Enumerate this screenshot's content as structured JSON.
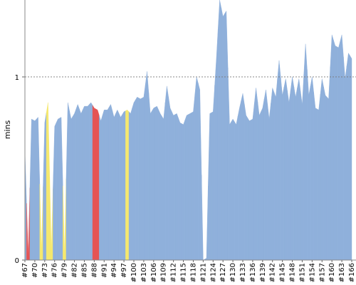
{
  "chart_data": {
    "type": "area",
    "y_label": "mins",
    "categories": [
      "#67",
      null,
      null,
      "#70",
      null,
      null,
      "#73",
      null,
      null,
      "#76",
      null,
      null,
      "#79",
      null,
      null,
      "#82",
      null,
      null,
      "#85",
      null,
      null,
      "#88",
      null,
      null,
      "#91",
      null,
      null,
      "#94",
      null,
      null,
      "#97",
      null,
      null,
      "#100",
      null,
      null,
      "#103",
      null,
      null,
      "#106",
      null,
      null,
      "#109",
      null,
      null,
      "#112",
      null,
      null,
      "#115",
      null,
      null,
      "#118",
      null,
      null,
      "#121",
      null,
      null,
      "#124",
      null,
      null,
      "#127",
      null,
      null,
      "#130",
      null,
      null,
      "#133",
      null,
      null,
      "#136",
      null,
      null,
      "#139",
      null,
      null,
      "#142",
      null,
      null,
      "#145",
      null,
      null,
      "#148",
      null,
      null,
      "#151",
      null,
      null,
      "#154",
      null,
      null,
      "#157",
      null,
      null,
      "#160",
      null,
      null,
      "#163",
      null,
      null,
      "#166"
    ],
    "values": [
      0.6,
      0.02,
      0.77,
      0.76,
      0.78,
      0.05,
      0.75,
      0.86,
      0.05,
      0.73,
      0.77,
      0.78,
      0.03,
      0.86,
      0.77,
      0.8,
      0.85,
      0.8,
      0.84,
      0.84,
      0.86,
      0.83,
      0.82,
      0.76,
      0.82,
      0.82,
      0.85,
      0.78,
      0.82,
      0.78,
      0.81,
      0.82,
      0.8,
      0.86,
      0.89,
      0.88,
      0.89,
      1.03,
      0.8,
      0.83,
      0.84,
      0.8,
      0.77,
      0.95,
      0.83,
      0.79,
      0.8,
      0.75,
      0.74,
      0.79,
      0.8,
      0.81,
      1.0,
      0.93,
      0.0,
      0.01,
      0.8,
      0.81,
      1.1,
      1.42,
      1.33,
      1.36,
      0.74,
      0.77,
      0.74,
      0.83,
      0.91,
      0.79,
      0.76,
      0.77,
      0.94,
      0.79,
      0.83,
      0.93,
      0.77,
      0.94,
      0.89,
      1.09,
      0.9,
      0.99,
      0.86,
      1.0,
      0.89,
      0.99,
      0.85,
      1.18,
      0.9,
      1.0,
      0.83,
      0.82,
      0.99,
      0.9,
      0.88,
      1.23,
      1.17,
      1.16,
      1.23,
      0.99,
      1.13,
      1.1
    ],
    "colors": [
      "#8fb0db",
      "#e55454",
      "#8fb0db",
      "#8fb0db",
      "#8fb0db",
      "#f5e86e",
      "#8fb0db",
      "#f5e86e",
      "#f5e86e",
      "#8fb0db",
      "#8fb0db",
      "#8fb0db",
      "#f5e86e",
      "#8fb0db",
      "#8fb0db",
      "#8fb0db",
      "#8fb0db",
      "#8fb0db",
      "#8fb0db",
      "#8fb0db",
      "#8fb0db",
      "#e55454",
      "#e55454",
      "#8fb0db",
      "#8fb0db",
      "#8fb0db",
      "#8fb0db",
      "#8fb0db",
      "#8fb0db",
      "#8fb0db",
      "#8fb0db",
      "#f5e86e",
      "#8fb0db",
      "#8fb0db",
      "#8fb0db",
      "#8fb0db",
      "#8fb0db",
      "#8fb0db",
      "#8fb0db",
      "#8fb0db",
      "#8fb0db",
      "#8fb0db",
      "#8fb0db",
      "#8fb0db",
      "#8fb0db",
      "#8fb0db",
      "#8fb0db",
      "#8fb0db",
      "#8fb0db",
      "#8fb0db",
      "#8fb0db",
      "#8fb0db",
      "#8fb0db",
      "#8fb0db",
      "#8fb0db",
      "#8fb0db",
      "#8fb0db",
      "#8fb0db",
      "#8fb0db",
      "#8fb0db",
      "#8fb0db",
      "#8fb0db",
      "#8fb0db",
      "#8fb0db",
      "#8fb0db",
      "#8fb0db",
      "#8fb0db",
      "#8fb0db",
      "#8fb0db",
      "#8fb0db",
      "#8fb0db",
      "#8fb0db",
      "#8fb0db",
      "#8fb0db",
      "#8fb0db",
      "#8fb0db",
      "#8fb0db",
      "#8fb0db",
      "#8fb0db",
      "#8fb0db",
      "#8fb0db",
      "#8fb0db",
      "#8fb0db",
      "#8fb0db",
      "#8fb0db",
      "#8fb0db",
      "#8fb0db",
      "#8fb0db",
      "#8fb0db",
      "#8fb0db",
      "#8fb0db",
      "#8fb0db",
      "#8fb0db",
      "#8fb0db",
      "#8fb0db",
      "#8fb0db",
      "#8fb0db",
      "#8fb0db",
      "#8fb0db",
      "#8fb0db"
    ],
    "ylim": [
      0,
      1.42
    ],
    "yticks": [
      0,
      1
    ],
    "grid": true
  }
}
